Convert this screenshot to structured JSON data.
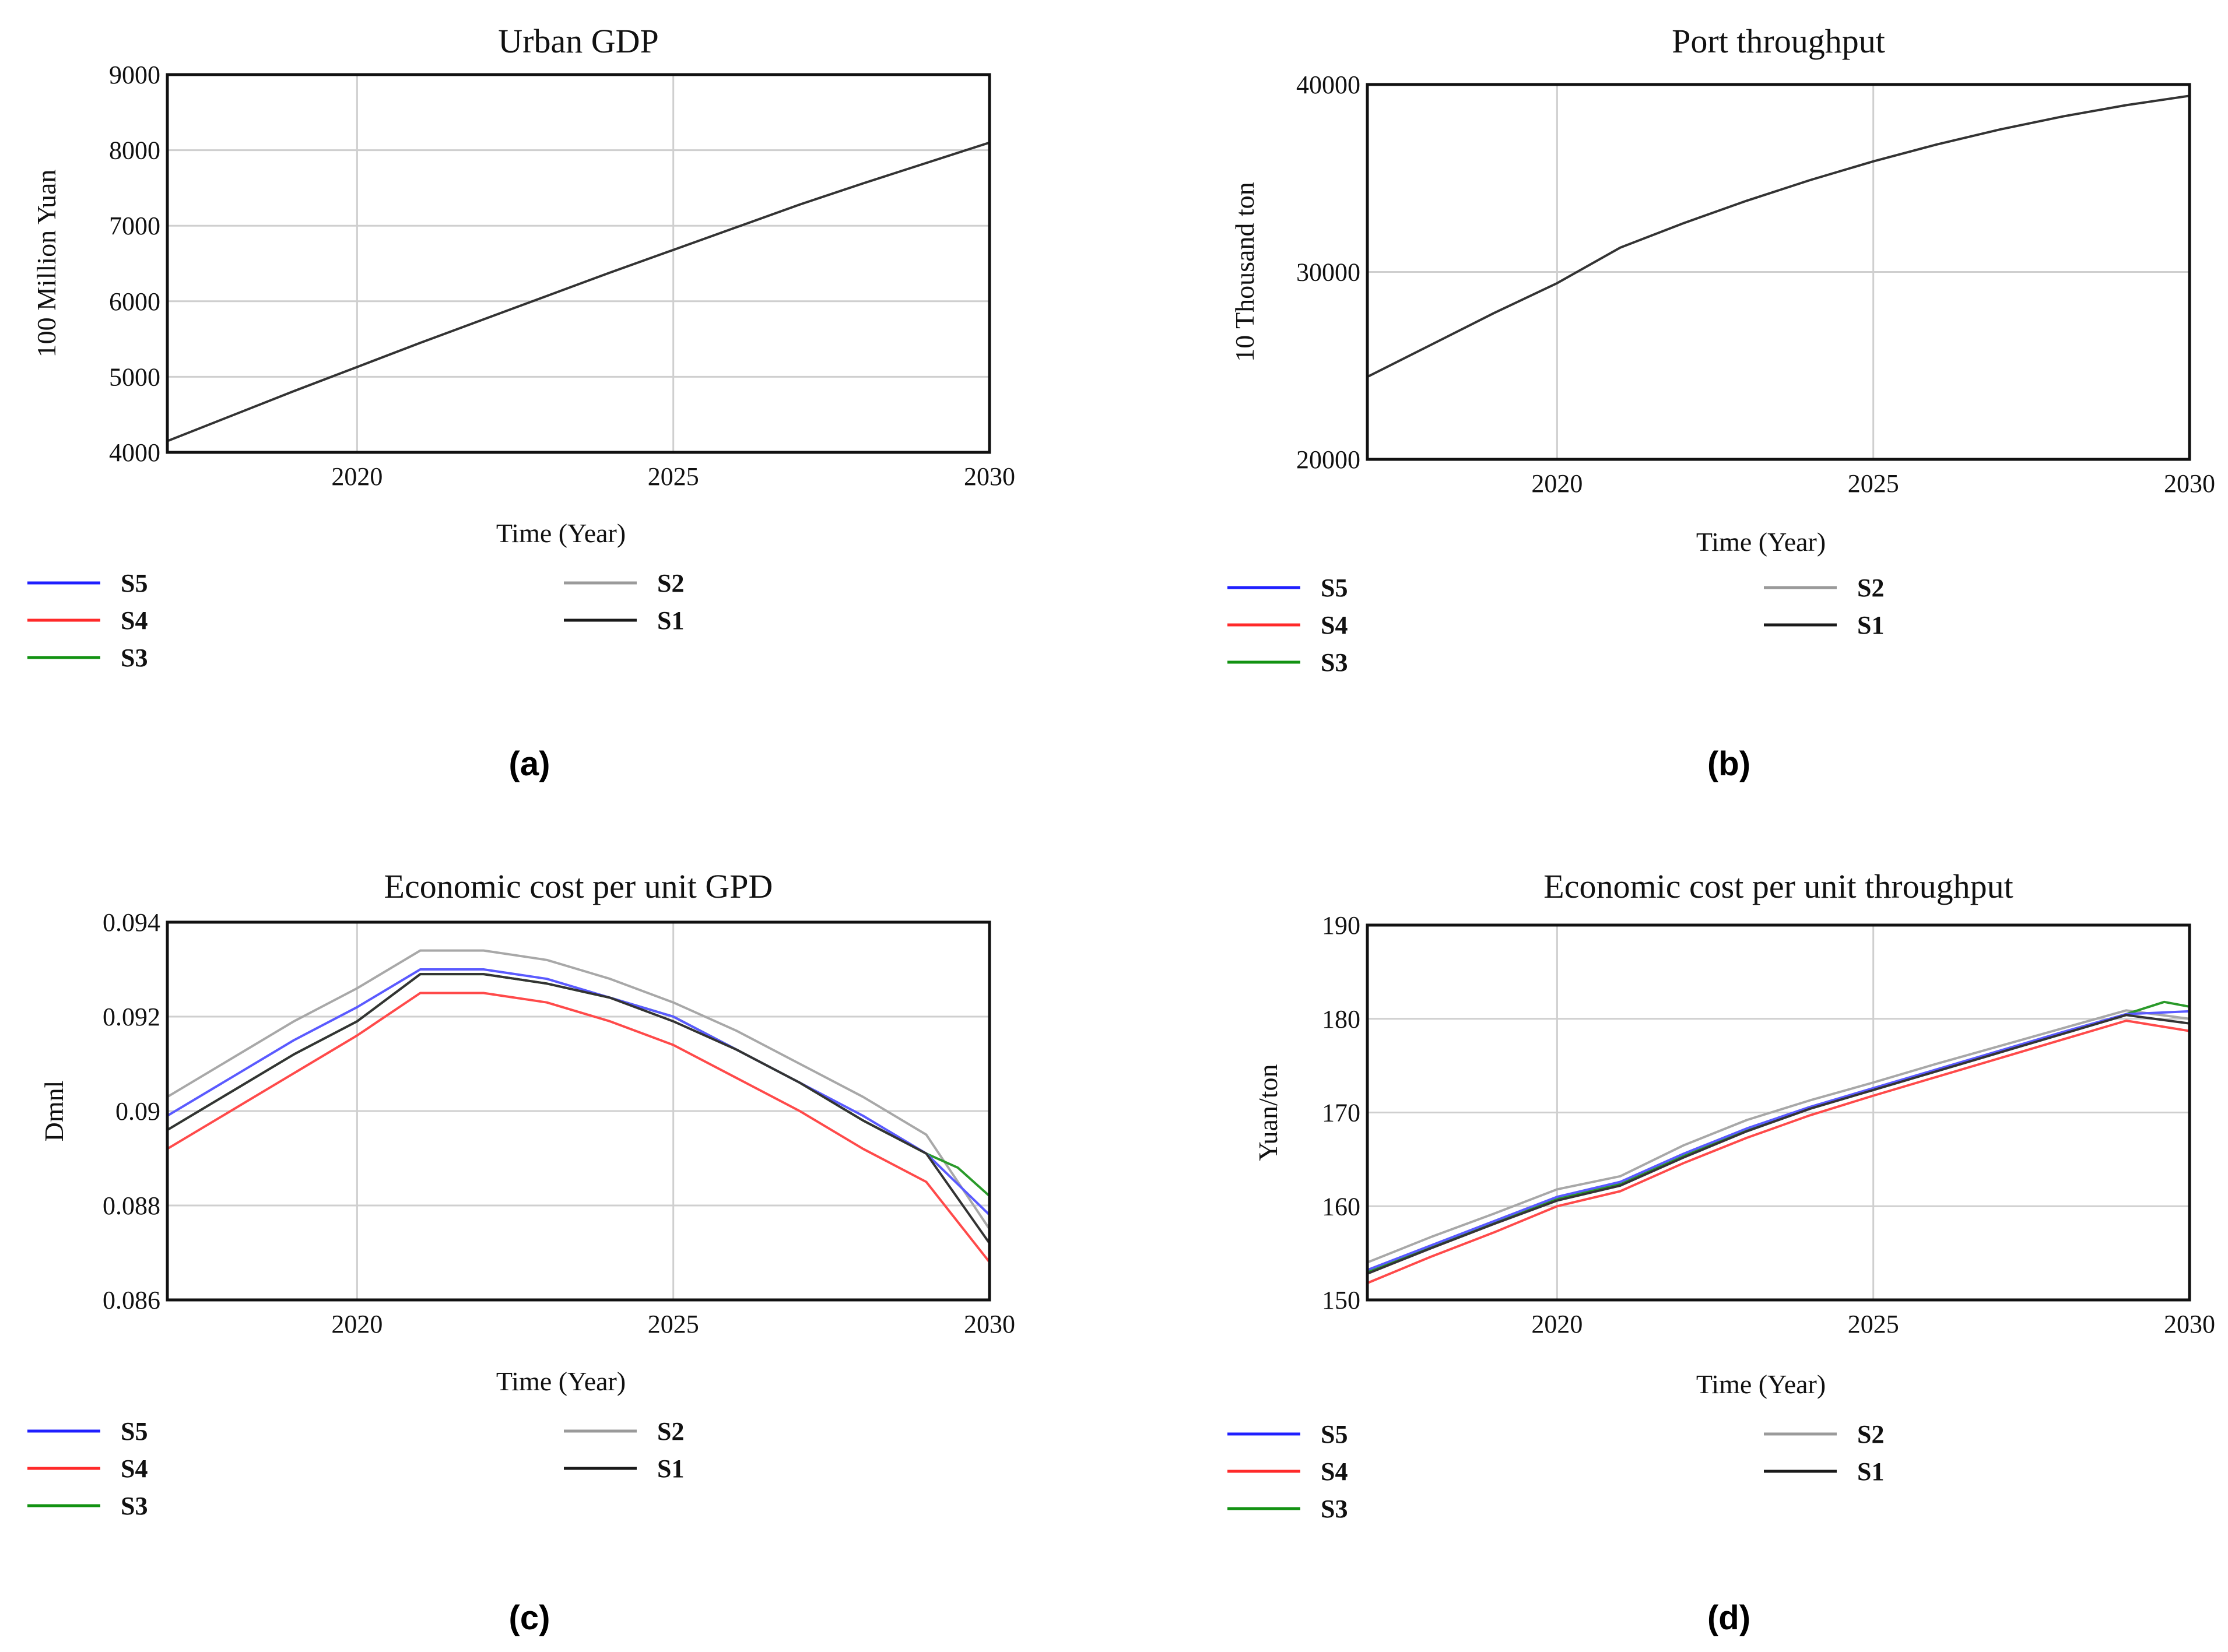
{
  "chart_data": [
    {
      "type": "line",
      "title": "Urban GDP",
      "xlabel": "Time (Year)",
      "ylabel": "100 Million Yuan",
      "xlim": [
        2017,
        2030
      ],
      "ylim": [
        4000,
        9000
      ],
      "xticks": [
        2020,
        2025,
        2030
      ],
      "yticks": [
        4000,
        5000,
        6000,
        7000,
        8000,
        9000
      ],
      "grid": true,
      "legend": [
        {
          "name": "S5",
          "color": "#1f1fff"
        },
        {
          "name": "S4",
          "color": "#ff2a2a"
        },
        {
          "name": "S3",
          "color": "#129212"
        },
        {
          "name": "S2",
          "color": "#9a9a9a"
        },
        {
          "name": "S1",
          "color": "#1a1a1a"
        }
      ],
      "caption": "(a)",
      "series": [
        {
          "name": "S1",
          "color": "#333333",
          "x": [
            2017,
            2018,
            2019,
            2020,
            2021,
            2022,
            2023,
            2024,
            2025,
            2026,
            2027,
            2028,
            2029,
            2030
          ],
          "y": [
            4150,
            4480,
            4810,
            5130,
            5450,
            5760,
            6070,
            6380,
            6680,
            6980,
            7280,
            7560,
            7830,
            8100
          ]
        }
      ]
    },
    {
      "type": "line",
      "title": "Port throughput",
      "xlabel": "Time (Year)",
      "ylabel": "10 Thousand ton",
      "xlim": [
        2017,
        2030
      ],
      "ylim": [
        20000,
        40000
      ],
      "xticks": [
        2020,
        2025,
        2030
      ],
      "yticks": [
        20000,
        30000,
        40000
      ],
      "grid": true,
      "legend": [
        {
          "name": "S5",
          "color": "#1f1fff"
        },
        {
          "name": "S4",
          "color": "#ff2a2a"
        },
        {
          "name": "S3",
          "color": "#129212"
        },
        {
          "name": "S2",
          "color": "#9a9a9a"
        },
        {
          "name": "S1",
          "color": "#1a1a1a"
        }
      ],
      "caption": "(b)",
      "series": [
        {
          "name": "S1",
          "color": "#333333",
          "x": [
            2017,
            2018,
            2019,
            2020,
            2021,
            2022,
            2023,
            2024,
            2025,
            2026,
            2027,
            2028,
            2029,
            2030
          ],
          "y": [
            24400,
            26100,
            27800,
            29400,
            31300,
            32600,
            33800,
            34900,
            35900,
            36800,
            37600,
            38300,
            38900,
            39400
          ]
        }
      ]
    },
    {
      "type": "line",
      "title": "Economic  cost  per  unit  GPD",
      "xlabel": "Time (Year)",
      "ylabel": "Dmnl",
      "xlim": [
        2017,
        2030
      ],
      "ylim": [
        0.086,
        0.094
      ],
      "xticks": [
        2020,
        2025,
        2030
      ],
      "yticks": [
        0.086,
        0.088,
        0.09,
        0.092,
        0.094
      ],
      "ytick_labels": [
        "0.086",
        "0.088",
        "0.09",
        "0.092",
        "0.094"
      ],
      "grid": true,
      "legend": [
        {
          "name": "S5",
          "color": "#1f1fff"
        },
        {
          "name": "S4",
          "color": "#ff2a2a"
        },
        {
          "name": "S3",
          "color": "#129212"
        },
        {
          "name": "S2",
          "color": "#9a9a9a"
        },
        {
          "name": "S1",
          "color": "#1a1a1a"
        }
      ],
      "caption": "(c)",
      "series": [
        {
          "name": "S2",
          "color": "#a8a8a8",
          "x": [
            2017,
            2018,
            2019,
            2020,
            2021,
            2022,
            2023,
            2024,
            2025,
            2026,
            2027,
            2028,
            2029,
            2030
          ],
          "y": [
            0.0903,
            0.0911,
            0.0919,
            0.0926,
            0.0934,
            0.0934,
            0.0932,
            0.0928,
            0.0923,
            0.0917,
            0.091,
            0.0903,
            0.0895,
            0.0875
          ]
        },
        {
          "name": "S4",
          "color": "#ff4a4a",
          "x": [
            2017,
            2018,
            2019,
            2020,
            2021,
            2022,
            2023,
            2024,
            2025,
            2026,
            2027,
            2028,
            2029,
            2030
          ],
          "y": [
            0.0892,
            0.09,
            0.0908,
            0.0916,
            0.0925,
            0.0925,
            0.0923,
            0.0919,
            0.0914,
            0.0907,
            0.09,
            0.0892,
            0.0885,
            0.0868
          ]
        },
        {
          "name": "S3",
          "color": "#2a9a2a",
          "x": [
            2017,
            2018,
            2019,
            2020,
            2021,
            2022,
            2023,
            2024,
            2025,
            2026,
            2027,
            2028,
            2029,
            2029.5,
            2030
          ],
          "y": [
            0.0896,
            0.0904,
            0.0912,
            0.0919,
            0.0929,
            0.0929,
            0.0927,
            0.0924,
            0.092,
            0.0913,
            0.0906,
            0.0898,
            0.0891,
            0.0888,
            0.0882
          ]
        },
        {
          "name": "S5",
          "color": "#5a5aff",
          "x": [
            2017,
            2018,
            2019,
            2020,
            2021,
            2022,
            2023,
            2024,
            2025,
            2026,
            2027,
            2028,
            2029,
            2030
          ],
          "y": [
            0.0899,
            0.0907,
            0.0915,
            0.0922,
            0.093,
            0.093,
            0.0928,
            0.0924,
            0.092,
            0.0913,
            0.0906,
            0.0899,
            0.0891,
            0.0878
          ]
        },
        {
          "name": "S1",
          "color": "#333333",
          "x": [
            2017,
            2018,
            2019,
            2020,
            2021,
            2022,
            2023,
            2024,
            2025,
            2026,
            2027,
            2028,
            2029,
            2030
          ],
          "y": [
            0.0896,
            0.0904,
            0.0912,
            0.0919,
            0.0929,
            0.0929,
            0.0927,
            0.0924,
            0.0919,
            0.0913,
            0.0906,
            0.0898,
            0.0891,
            0.0872
          ]
        }
      ]
    },
    {
      "type": "line",
      "title": "Economic  cost  per  unit  throughput",
      "xlabel": "Time (Year)",
      "ylabel": "Yuan/ton",
      "xlim": [
        2017,
        2030
      ],
      "ylim": [
        150,
        190
      ],
      "xticks": [
        2020,
        2025,
        2030
      ],
      "yticks": [
        150,
        160,
        170,
        180,
        190
      ],
      "grid": true,
      "legend": [
        {
          "name": "S5",
          "color": "#1f1fff"
        },
        {
          "name": "S4",
          "color": "#ff2a2a"
        },
        {
          "name": "S3",
          "color": "#129212"
        },
        {
          "name": "S2",
          "color": "#9a9a9a"
        },
        {
          "name": "S1",
          "color": "#1a1a1a"
        }
      ],
      "caption": "(d)",
      "series": [
        {
          "name": "S2",
          "color": "#a8a8a8",
          "x": [
            2017,
            2018,
            2019,
            2020,
            2021,
            2022,
            2023,
            2024,
            2025,
            2026,
            2027,
            2028,
            2029,
            2030
          ],
          "y": [
            154,
            156.7,
            159.2,
            161.8,
            163.2,
            166.5,
            169.2,
            171.3,
            173.2,
            175.2,
            177.1,
            179,
            180.9,
            180
          ]
        },
        {
          "name": "S4",
          "color": "#ff4a4a",
          "x": [
            2017,
            2018,
            2019,
            2020,
            2021,
            2022,
            2023,
            2024,
            2025,
            2026,
            2027,
            2028,
            2029,
            2030
          ],
          "y": [
            151.8,
            154.6,
            157.2,
            160,
            161.6,
            164.6,
            167.3,
            169.7,
            171.8,
            173.8,
            175.8,
            177.8,
            179.8,
            178.7
          ]
        },
        {
          "name": "S3",
          "color": "#2a9a2a",
          "x": [
            2017,
            2018,
            2019,
            2020,
            2021,
            2022,
            2023,
            2024,
            2025,
            2026,
            2027,
            2028,
            2029,
            2029.6,
            2030
          ],
          "y": [
            153,
            155.7,
            158.3,
            160.8,
            162.4,
            165.4,
            168.1,
            170.5,
            172.5,
            174.5,
            176.5,
            178.5,
            180.5,
            181.8,
            181.3
          ]
        },
        {
          "name": "S5",
          "color": "#5a5aff",
          "x": [
            2017,
            2018,
            2019,
            2020,
            2021,
            2022,
            2023,
            2024,
            2025,
            2026,
            2027,
            2028,
            2029,
            2030
          ],
          "y": [
            153.2,
            155.8,
            158.4,
            161,
            162.6,
            165.6,
            168.3,
            170.6,
            172.6,
            174.6,
            176.6,
            178.6,
            180.5,
            180.8
          ]
        },
        {
          "name": "S1",
          "color": "#333333",
          "x": [
            2017,
            2018,
            2019,
            2020,
            2021,
            2022,
            2023,
            2024,
            2025,
            2026,
            2027,
            2028,
            2029,
            2030
          ],
          "y": [
            152.8,
            155.5,
            158.1,
            160.6,
            162.2,
            165.2,
            168,
            170.4,
            172.4,
            174.4,
            176.4,
            178.4,
            180.4,
            179.5
          ]
        }
      ]
    }
  ]
}
